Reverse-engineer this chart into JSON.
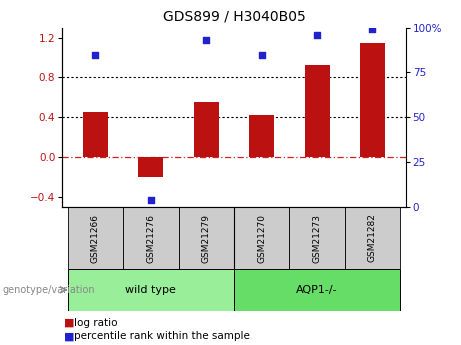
{
  "title": "GDS899 / H3040B05",
  "samples": [
    "GSM21266",
    "GSM21276",
    "GSM21279",
    "GSM21270",
    "GSM21273",
    "GSM21282"
  ],
  "log_ratio": [
    0.45,
    -0.2,
    0.55,
    0.42,
    0.92,
    1.15
  ],
  "percentile_rank": [
    85,
    4,
    93,
    85,
    96,
    99
  ],
  "groups": [
    {
      "label": "wild type",
      "indices": [
        0,
        1,
        2
      ],
      "color": "#99ee99"
    },
    {
      "label": "AQP1-/-",
      "indices": [
        3,
        4,
        5
      ],
      "color": "#66dd66"
    }
  ],
  "bar_color": "#bb1111",
  "dot_color": "#2222cc",
  "ylim_left": [
    -0.5,
    1.3
  ],
  "ylim_right": [
    0,
    100
  ],
  "yticks_left": [
    -0.4,
    0.0,
    0.4,
    0.8,
    1.2
  ],
  "yticks_right": [
    0,
    25,
    50,
    75,
    100
  ],
  "bar_width": 0.45,
  "background_color": "#ffffff",
  "legend_items": [
    {
      "label": "log ratio",
      "color": "#bb1111"
    },
    {
      "label": "percentile rank within the sample",
      "color": "#2222cc"
    }
  ],
  "genotype_label": "genotype/variation",
  "title_fontsize": 10,
  "tick_fontsize": 7.5,
  "sample_fontsize": 6.5,
  "legend_fontsize": 7.5
}
